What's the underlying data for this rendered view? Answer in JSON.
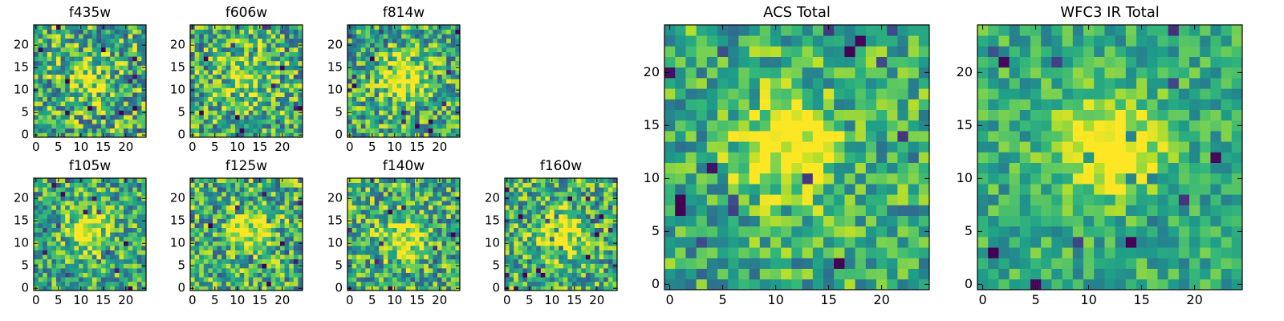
{
  "chart_data": [
    {
      "type": "heatmap",
      "title": "f435w",
      "xlim": [
        -0.5,
        24.5
      ],
      "ylim": [
        -0.5,
        24.5
      ],
      "xticks": [
        0,
        5,
        10,
        15,
        20
      ],
      "yticks": [
        0,
        5,
        10,
        15,
        20
      ],
      "colormap": "viridis",
      "source_peak": [
        12,
        13
      ],
      "source_strength": 0.25,
      "noise_level": 0.75
    },
    {
      "type": "heatmap",
      "title": "f606w",
      "xlim": [
        -0.5,
        24.5
      ],
      "ylim": [
        -0.5,
        24.5
      ],
      "xticks": [
        0,
        5,
        10,
        15,
        20
      ],
      "yticks": [
        0,
        5,
        10,
        15,
        20
      ],
      "colormap": "viridis",
      "source_peak": [
        12,
        13
      ],
      "source_strength": 0.35,
      "noise_level": 0.75
    },
    {
      "type": "heatmap",
      "title": "f814w",
      "xlim": [
        -0.5,
        24.5
      ],
      "ylim": [
        -0.5,
        24.5
      ],
      "xticks": [
        0,
        5,
        10,
        15,
        20
      ],
      "yticks": [
        0,
        5,
        10,
        15,
        20
      ],
      "colormap": "viridis",
      "source_peak": [
        12,
        13
      ],
      "source_strength": 0.55,
      "noise_level": 0.7
    },
    {
      "type": "heatmap",
      "title": "f105w",
      "xlim": [
        -0.5,
        24.5
      ],
      "ylim": [
        -0.5,
        24.5
      ],
      "xticks": [
        0,
        5,
        10,
        15,
        20
      ],
      "yticks": [
        0,
        5,
        10,
        15,
        20
      ],
      "colormap": "viridis",
      "source_peak": [
        12,
        13
      ],
      "source_strength": 0.45,
      "noise_level": 0.65
    },
    {
      "type": "heatmap",
      "title": "f125w",
      "xlim": [
        -0.5,
        24.5
      ],
      "ylim": [
        -0.5,
        24.5
      ],
      "xticks": [
        0,
        5,
        10,
        15,
        20
      ],
      "yticks": [
        0,
        5,
        10,
        15,
        20
      ],
      "colormap": "viridis",
      "source_peak": [
        13,
        12
      ],
      "source_strength": 0.4,
      "noise_level": 0.7
    },
    {
      "type": "heatmap",
      "title": "f140w",
      "xlim": [
        -0.5,
        24.5
      ],
      "ylim": [
        -0.5,
        24.5
      ],
      "xticks": [
        0,
        5,
        10,
        15,
        20
      ],
      "yticks": [
        0,
        5,
        10,
        15,
        20
      ],
      "colormap": "viridis",
      "source_peak": [
        12,
        11
      ],
      "source_strength": 0.45,
      "noise_level": 0.7
    },
    {
      "type": "heatmap",
      "title": "f160w",
      "xlim": [
        -0.5,
        24.5
      ],
      "ylim": [
        -0.5,
        24.5
      ],
      "xticks": [
        0,
        5,
        10,
        15,
        20
      ],
      "yticks": [
        0,
        5,
        10,
        15,
        20
      ],
      "colormap": "viridis",
      "source_peak": [
        12,
        12
      ],
      "source_strength": 0.45,
      "noise_level": 0.7
    },
    {
      "type": "heatmap",
      "title": "ACS Total",
      "xlim": [
        -0.5,
        24.5
      ],
      "ylim": [
        -0.5,
        24.5
      ],
      "xticks": [
        0,
        5,
        10,
        15,
        20
      ],
      "yticks": [
        0,
        5,
        10,
        15,
        20
      ],
      "colormap": "viridis",
      "source_peak": [
        11,
        13
      ],
      "source_strength": 0.5,
      "noise_level": 0.55
    },
    {
      "type": "heatmap",
      "title": "WFC3 IR Total",
      "xlim": [
        -0.5,
        24.5
      ],
      "ylim": [
        -0.5,
        24.5
      ],
      "xticks": [
        0,
        5,
        10,
        15,
        20
      ],
      "yticks": [
        0,
        5,
        10,
        15,
        20
      ],
      "colormap": "viridis",
      "source_peak": [
        12,
        13
      ],
      "source_strength": 0.55,
      "noise_level": 0.4
    }
  ]
}
